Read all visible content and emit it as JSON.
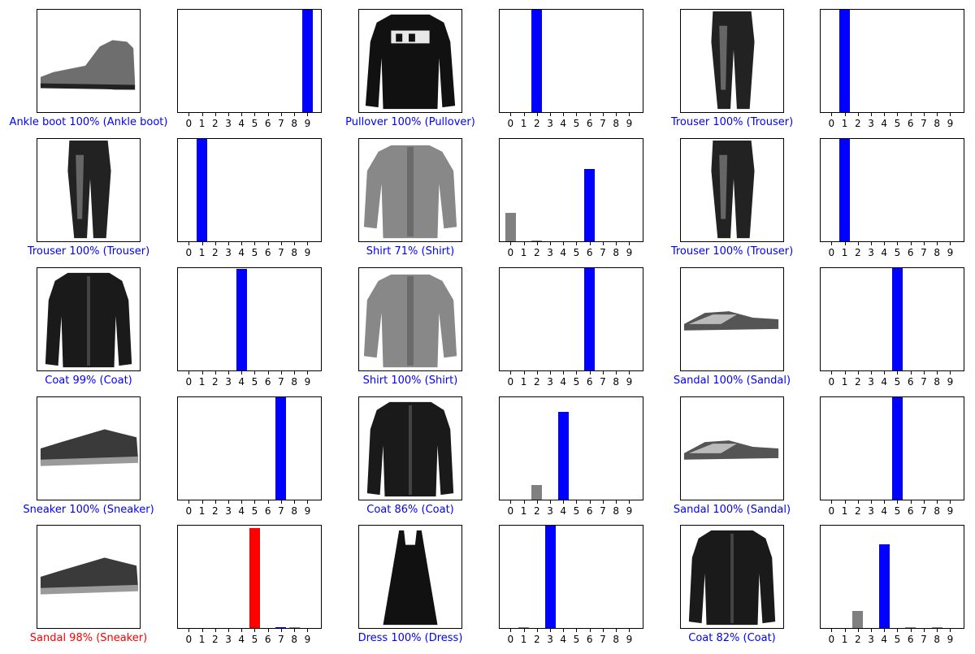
{
  "colors": {
    "correct": "#0000ff",
    "incorrect": "#ff0000",
    "other": "#808080"
  },
  "chart_data": [
    {
      "type": "bar",
      "image_icon": "ankle-boot-icon",
      "caption": "Ankle boot 100% (Ankle boot)",
      "correct": true,
      "true_label": 9,
      "predicted_label": 9,
      "categories": [
        "0",
        "1",
        "2",
        "3",
        "4",
        "5",
        "6",
        "7",
        "8",
        "9"
      ],
      "values": [
        0,
        0,
        0,
        0,
        0,
        0,
        0,
        0,
        0,
        1.0
      ],
      "ylim": [
        0,
        1
      ]
    },
    {
      "type": "bar",
      "image_icon": "pullover-icon",
      "caption": "Pullover 100% (Pullover)",
      "correct": true,
      "true_label": 2,
      "predicted_label": 2,
      "categories": [
        "0",
        "1",
        "2",
        "3",
        "4",
        "5",
        "6",
        "7",
        "8",
        "9"
      ],
      "values": [
        0,
        0,
        1.0,
        0,
        0,
        0,
        0,
        0,
        0,
        0
      ],
      "ylim": [
        0,
        1
      ]
    },
    {
      "type": "bar",
      "image_icon": "trouser-icon",
      "caption": "Trouser 100% (Trouser)",
      "correct": true,
      "true_label": 1,
      "predicted_label": 1,
      "categories": [
        "0",
        "1",
        "2",
        "3",
        "4",
        "5",
        "6",
        "7",
        "8",
        "9"
      ],
      "values": [
        0,
        1.0,
        0,
        0,
        0,
        0,
        0,
        0,
        0,
        0
      ],
      "ylim": [
        0,
        1
      ]
    },
    {
      "type": "bar",
      "image_icon": "trouser-icon",
      "caption": "Trouser 100% (Trouser)",
      "correct": true,
      "true_label": 1,
      "predicted_label": 1,
      "categories": [
        "0",
        "1",
        "2",
        "3",
        "4",
        "5",
        "6",
        "7",
        "8",
        "9"
      ],
      "values": [
        0,
        1.0,
        0,
        0,
        0,
        0,
        0,
        0,
        0,
        0
      ],
      "ylim": [
        0,
        1
      ]
    },
    {
      "type": "bar",
      "image_icon": "shirt-icon",
      "caption": "Shirt 71% (Shirt)",
      "correct": true,
      "true_label": 6,
      "predicted_label": 6,
      "categories": [
        "0",
        "1",
        "2",
        "3",
        "4",
        "5",
        "6",
        "7",
        "8",
        "9"
      ],
      "values": [
        0.28,
        0,
        0.01,
        0,
        0,
        0,
        0.71,
        0,
        0,
        0
      ],
      "ylim": [
        0,
        1
      ]
    },
    {
      "type": "bar",
      "image_icon": "trouser-icon",
      "caption": "Trouser 100% (Trouser)",
      "correct": true,
      "true_label": 1,
      "predicted_label": 1,
      "categories": [
        "0",
        "1",
        "2",
        "3",
        "4",
        "5",
        "6",
        "7",
        "8",
        "9"
      ],
      "values": [
        0,
        1.0,
        0,
        0,
        0,
        0,
        0,
        0,
        0,
        0
      ],
      "ylim": [
        0,
        1
      ]
    },
    {
      "type": "bar",
      "image_icon": "coat-icon",
      "caption": "Coat 99% (Coat)",
      "correct": true,
      "true_label": 4,
      "predicted_label": 4,
      "categories": [
        "0",
        "1",
        "2",
        "3",
        "4",
        "5",
        "6",
        "7",
        "8",
        "9"
      ],
      "values": [
        0,
        0,
        0,
        0,
        0.99,
        0,
        0,
        0,
        0,
        0
      ],
      "ylim": [
        0,
        1
      ]
    },
    {
      "type": "bar",
      "image_icon": "shirt-icon",
      "caption": "Shirt 100% (Shirt)",
      "correct": true,
      "true_label": 6,
      "predicted_label": 6,
      "categories": [
        "0",
        "1",
        "2",
        "3",
        "4",
        "5",
        "6",
        "7",
        "8",
        "9"
      ],
      "values": [
        0,
        0,
        0,
        0,
        0,
        0,
        1.0,
        0,
        0,
        0
      ],
      "ylim": [
        0,
        1
      ]
    },
    {
      "type": "bar",
      "image_icon": "sandal-icon",
      "caption": "Sandal 100% (Sandal)",
      "correct": true,
      "true_label": 5,
      "predicted_label": 5,
      "categories": [
        "0",
        "1",
        "2",
        "3",
        "4",
        "5",
        "6",
        "7",
        "8",
        "9"
      ],
      "values": [
        0,
        0,
        0,
        0,
        0,
        1.0,
        0,
        0,
        0,
        0
      ],
      "ylim": [
        0,
        1
      ]
    },
    {
      "type": "bar",
      "image_icon": "sneaker-icon",
      "caption": "Sneaker 100% (Sneaker)",
      "correct": true,
      "true_label": 7,
      "predicted_label": 7,
      "categories": [
        "0",
        "1",
        "2",
        "3",
        "4",
        "5",
        "6",
        "7",
        "8",
        "9"
      ],
      "values": [
        0,
        0,
        0,
        0,
        0,
        0,
        0,
        1.0,
        0,
        0
      ],
      "ylim": [
        0,
        1
      ]
    },
    {
      "type": "bar",
      "image_icon": "coat-icon",
      "caption": "Coat 86% (Coat)",
      "correct": true,
      "true_label": 4,
      "predicted_label": 4,
      "categories": [
        "0",
        "1",
        "2",
        "3",
        "4",
        "5",
        "6",
        "7",
        "8",
        "9"
      ],
      "values": [
        0,
        0,
        0.14,
        0,
        0.86,
        0,
        0,
        0,
        0,
        0
      ],
      "ylim": [
        0,
        1
      ]
    },
    {
      "type": "bar",
      "image_icon": "sandal-icon",
      "caption": "Sandal 100% (Sandal)",
      "correct": true,
      "true_label": 5,
      "predicted_label": 5,
      "categories": [
        "0",
        "1",
        "2",
        "3",
        "4",
        "5",
        "6",
        "7",
        "8",
        "9"
      ],
      "values": [
        0,
        0,
        0,
        0,
        0,
        1.0,
        0,
        0,
        0,
        0
      ],
      "ylim": [
        0,
        1
      ]
    },
    {
      "type": "bar",
      "image_icon": "sneaker-icon",
      "caption": "Sandal 98% (Sneaker)",
      "correct": false,
      "true_label": 7,
      "predicted_label": 5,
      "categories": [
        "0",
        "1",
        "2",
        "3",
        "4",
        "5",
        "6",
        "7",
        "8",
        "9"
      ],
      "values": [
        0,
        0,
        0,
        0,
        0,
        0.98,
        0,
        0.01,
        0.01,
        0
      ],
      "ylim": [
        0,
        1
      ]
    },
    {
      "type": "bar",
      "image_icon": "dress-icon",
      "caption": "Dress 100% (Dress)",
      "correct": true,
      "true_label": 3,
      "predicted_label": 3,
      "categories": [
        "0",
        "1",
        "2",
        "3",
        "4",
        "5",
        "6",
        "7",
        "8",
        "9"
      ],
      "values": [
        0,
        0.005,
        0,
        1.0,
        0,
        0,
        0,
        0,
        0,
        0
      ],
      "ylim": [
        0,
        1
      ]
    },
    {
      "type": "bar",
      "image_icon": "coat-icon",
      "caption": "Coat 82% (Coat)",
      "correct": true,
      "true_label": 4,
      "predicted_label": 4,
      "categories": [
        "0",
        "1",
        "2",
        "3",
        "4",
        "5",
        "6",
        "7",
        "8",
        "9"
      ],
      "values": [
        0,
        0,
        0.17,
        0,
        0.82,
        0,
        0.005,
        0,
        0.005,
        0
      ],
      "ylim": [
        0,
        1
      ]
    }
  ]
}
